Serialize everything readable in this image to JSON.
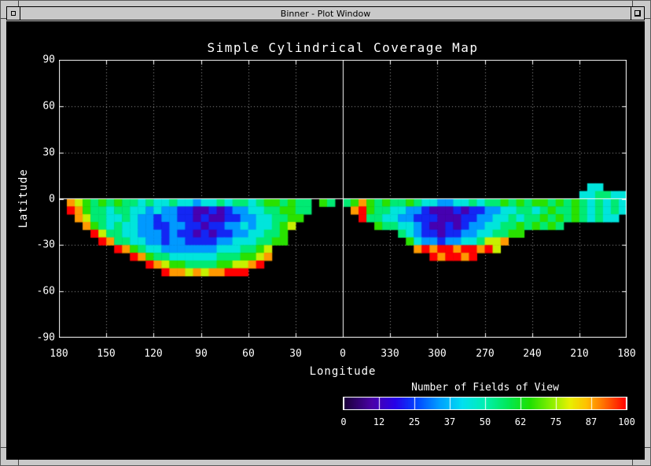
{
  "window": {
    "title": "Binner - Plot Window",
    "buttons": {
      "left_icon": "window-menu-icon",
      "right_icon": "window-resize-icon"
    }
  },
  "colors": {
    "frame": "#c9c9c9",
    "screen_bg": "#000000",
    "plot_fg": "#ffffff",
    "grid_dotted": "#9a9a9a"
  },
  "chart_data": {
    "type": "heatmap",
    "title": "Simple Cylindrical Coverage Map",
    "xlabel": "Longitude",
    "ylabel": "Latitude",
    "x_tick_labels": [
      "180",
      "150",
      "120",
      "90",
      "60",
      "30",
      "0",
      "330",
      "300",
      "270",
      "240",
      "210",
      "180"
    ],
    "y_tick_labels": [
      "90",
      "60",
      "30",
      "0",
      "-30",
      "-60",
      "-90"
    ],
    "x_axis_span_deg": 360,
    "y_range": [
      -90,
      90
    ],
    "grid_style": "dotted",
    "zero_lines": [
      "latitude-0",
      "longitude-0"
    ],
    "cell_deg": 5,
    "value_range": [
      0,
      100
    ],
    "value_note": "digit d in runs maps to value d/9*100 fields of view",
    "grid_rows": [
      {
        "r": 16,
        "runs": [
          [
            67,
            "44"
          ]
        ]
      },
      {
        "r": 17,
        "runs": [
          [
            66,
            "445544"
          ]
        ]
      },
      {
        "r": 18,
        "runs": [
          [
            1,
            "8765656554544544344545545665655"
          ],
          [
            33,
            "65"
          ],
          [
            36,
            "568656556544334454556565665656545454"
          ]
        ]
      },
      {
        "r": 19,
        "runs": [
          [
            1,
            "9865545544343322112123344556655"
          ],
          [
            37,
            "89655443321112122334455456556545454"
          ]
        ]
      },
      {
        "r": 20,
        "runs": [
          [
            2,
            "87554454332332212112233445566"
          ],
          [
            38,
            "955443322211122334454556565654544"
          ]
        ]
      },
      {
        "r": 21,
        "runs": [
          [
            3,
            "865454433223322122334344567"
          ],
          [
            40,
            "655443211212334455656565"
          ]
        ]
      },
      {
        "r": 22,
        "runs": [
          [
            4,
            "9755443332322121223344556"
          ],
          [
            43,
            "5432212233445566"
          ]
        ]
      },
      {
        "r": 23,
        "runs": [
          [
            5,
            "985544332332222334445566"
          ],
          [
            44,
            "6433233445778"
          ]
        ]
      },
      {
        "r": 24,
        "runs": [
          [
            7,
            "98654433333334445567"
          ],
          [
            45,
            "89899899897"
          ]
        ]
      },
      {
        "r": 25,
        "runs": [
          [
            9,
            "986554444445556678"
          ],
          [
            47,
            "989989"
          ]
        ]
      },
      {
        "r": 26,
        "runs": [
          [
            11,
            "987665555667789"
          ]
        ]
      },
      {
        "r": 27,
        "runs": [
          [
            13,
            "98878788999"
          ]
        ]
      }
    ]
  },
  "colorbar": {
    "title": "Number of Fields of View",
    "tick_labels": [
      "0",
      "12",
      "25",
      "37",
      "50",
      "62",
      "75",
      "87",
      "100"
    ],
    "stops": [
      {
        "t": 0.0,
        "c": "#1a0038"
      },
      {
        "t": 0.1,
        "c": "#4b00a8"
      },
      {
        "t": 0.18,
        "c": "#2800e8"
      },
      {
        "t": 0.26,
        "c": "#0048ff"
      },
      {
        "t": 0.34,
        "c": "#00a0ff"
      },
      {
        "t": 0.42,
        "c": "#00e0f0"
      },
      {
        "t": 0.5,
        "c": "#00f0b0"
      },
      {
        "t": 0.58,
        "c": "#00e858"
      },
      {
        "t": 0.66,
        "c": "#20e000"
      },
      {
        "t": 0.74,
        "c": "#90f000"
      },
      {
        "t": 0.8,
        "c": "#e8f000"
      },
      {
        "t": 0.86,
        "c": "#ffc000"
      },
      {
        "t": 0.92,
        "c": "#ff7000"
      },
      {
        "t": 1.0,
        "c": "#ff0000"
      }
    ]
  }
}
